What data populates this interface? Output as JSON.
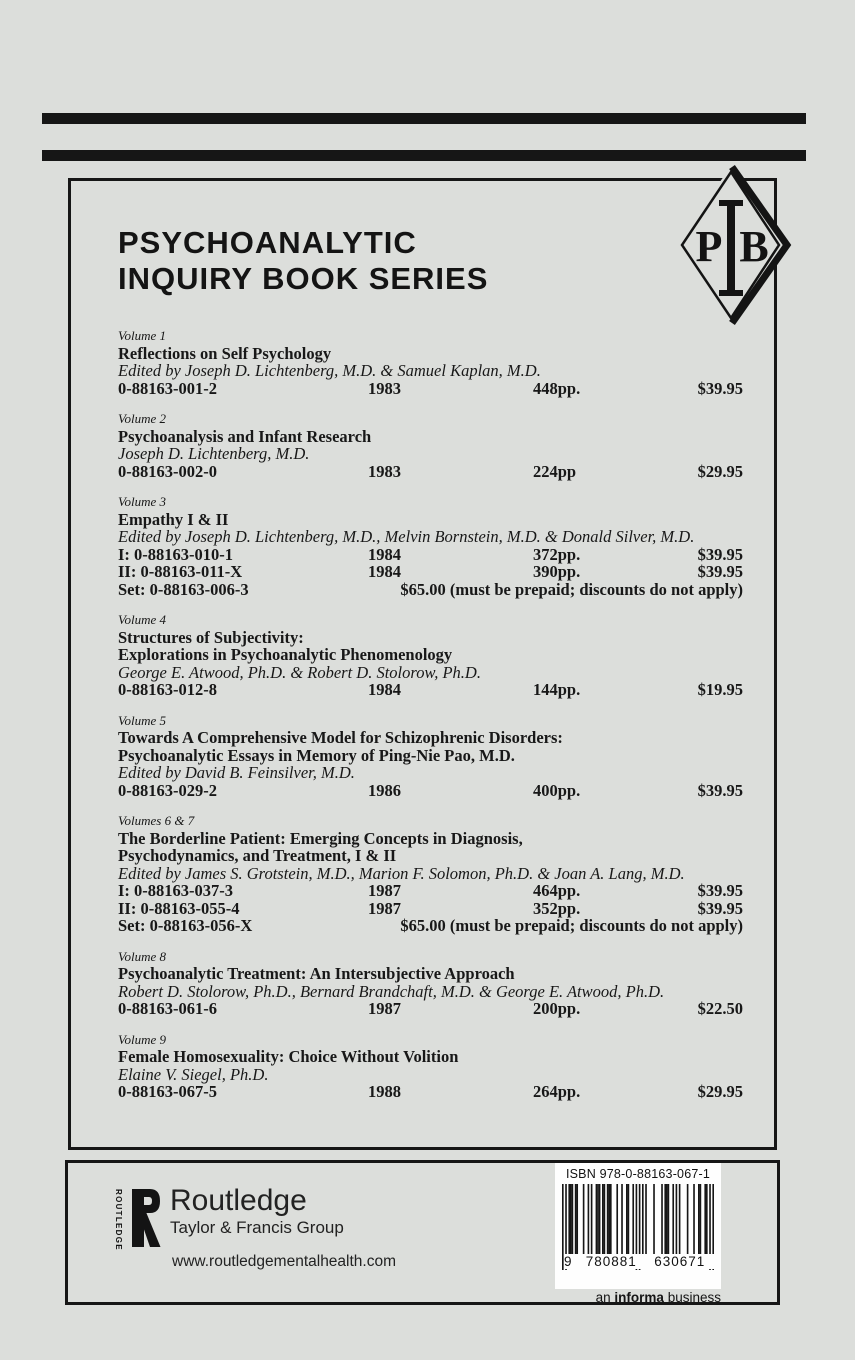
{
  "colors": {
    "background": "#dcdedb",
    "ink": "#161616",
    "barcode_background": "#fefefe"
  },
  "header": {
    "title_line1": "PSYCHOANALYTIC",
    "title_line2": "INQUIRY BOOK SERIES",
    "logo": {
      "p": "P",
      "i": "I",
      "b": "B"
    }
  },
  "volumes": [
    {
      "label": "Volume 1",
      "title_lines": [
        "Reflections on Self Psychology"
      ],
      "authors": "Edited by Joseph D. Lichtenberg, M.D. & Samuel Kaplan, M.D.",
      "rows": [
        {
          "isbn": "0-88163-001-2",
          "year": "1983",
          "pages": "448pp.",
          "price": "$39.95"
        }
      ]
    },
    {
      "label": "Volume 2",
      "title_lines": [
        "Psychoanalysis and Infant Research"
      ],
      "authors": "Joseph D. Lichtenberg, M.D.",
      "rows": [
        {
          "isbn": "0-88163-002-0",
          "year": "1983",
          "pages": "224pp",
          "price": "$29.95"
        }
      ]
    },
    {
      "label": "Volume 3",
      "title_lines": [
        "Empathy I & II"
      ],
      "authors": "Edited by Joseph D. Lichtenberg, M.D., Melvin Bornstein, M.D. & Donald Silver, M.D.",
      "rows": [
        {
          "isbn": "I: 0-88163-010-1",
          "year": "1984",
          "pages": "372pp.",
          "price": "$39.95"
        },
        {
          "isbn": "II: 0-88163-011-X",
          "year": "1984",
          "pages": "390pp.",
          "price": "$39.95"
        }
      ],
      "set": {
        "isbn": "Set: 0-88163-006-3",
        "note": "$65.00 (must be prepaid; discounts do not apply)"
      }
    },
    {
      "label": "Volume 4",
      "title_lines": [
        "Structures of Subjectivity:",
        "Explorations in Psychoanalytic Phenomenology"
      ],
      "authors": "George E. Atwood, Ph.D. & Robert D. Stolorow, Ph.D.",
      "rows": [
        {
          "isbn": "0-88163-012-8",
          "year": "1984",
          "pages": "144pp.",
          "price": "$19.95"
        }
      ]
    },
    {
      "label": "Volume 5",
      "title_lines": [
        "Towards A Comprehensive Model for Schizophrenic Disorders:",
        "Psychoanalytic Essays in Memory of Ping-Nie Pao, M.D."
      ],
      "authors": "Edited by David B. Feinsilver, M.D.",
      "rows": [
        {
          "isbn": "0-88163-029-2",
          "year": "1986",
          "pages": "400pp.",
          "price": "$39.95"
        }
      ]
    },
    {
      "label": "Volumes 6 & 7",
      "title_lines": [
        "The Borderline Patient: Emerging Concepts in Diagnosis,",
        "Psychodynamics, and Treatment, I & II"
      ],
      "authors": "Edited by James S. Grotstein, M.D., Marion F. Solomon, Ph.D. & Joan A. Lang, M.D.",
      "rows": [
        {
          "isbn": "I: 0-88163-037-3",
          "year": "1987",
          "pages": "464pp.",
          "price": "$39.95"
        },
        {
          "isbn": "II: 0-88163-055-4",
          "year": "1987",
          "pages": "352pp.",
          "price": "$39.95"
        }
      ],
      "set": {
        "isbn": "Set: 0-88163-056-X",
        "note": "$65.00 (must be prepaid; discounts do not apply)"
      }
    },
    {
      "label": "Volume 8",
      "title_lines": [
        "Psychoanalytic Treatment: An Intersubjective Approach"
      ],
      "authors": "Robert D. Stolorow, Ph.D., Bernard Brandchaft, M.D. & George E. Atwood, Ph.D.",
      "rows": [
        {
          "isbn": "0-88163-061-6",
          "year": "1987",
          "pages": "200pp.",
          "price": "$22.50"
        }
      ]
    },
    {
      "label": "Volume 9",
      "title_lines": [
        "Female Homosexuality: Choice Without Volition"
      ],
      "authors": "Elaine V. Siegel, Ph.D.",
      "rows": [
        {
          "isbn": "0-88163-067-5",
          "year": "1988",
          "pages": "264pp.",
          "price": "$29.95"
        }
      ]
    }
  ],
  "footer": {
    "vertical_name": "ROUTLEDGE",
    "publisher": "Routledge",
    "group": "Taylor & Francis Group",
    "website": "www.routledgementalhealth.com",
    "barcode": {
      "label": "ISBN 978-0-88163-067-1",
      "digits_lead": "9",
      "digits_group1": "780881",
      "digits_group2": "630671",
      "modules": [
        "101",
        "0111011",
        "0001001",
        "0100111",
        "0110111",
        "0001001",
        "0011001",
        "01010",
        "1010000",
        "1000010",
        "1110010",
        "1010000",
        "1000100",
        "1100110",
        "101"
      ]
    },
    "informa_pre": "an",
    "informa_bold": "informa",
    "informa_post": "business"
  }
}
